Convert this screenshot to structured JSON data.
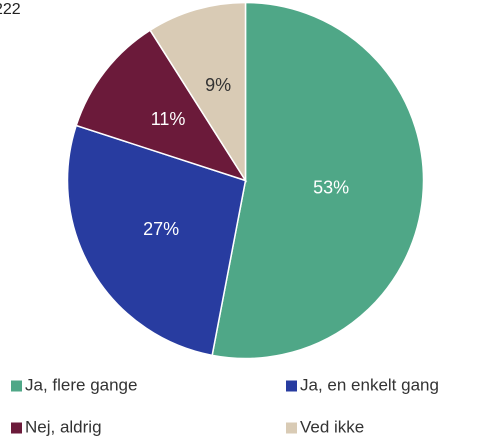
{
  "chart_data": {
    "type": "pie",
    "title": "222",
    "categories": [
      "Ja, flere gange",
      "Ja, en enkelt gang",
      "Nej, aldrig",
      "Ved ikke"
    ],
    "values": [
      53,
      27,
      11,
      9
    ],
    "value_labels": [
      "53%",
      "27%",
      "11%",
      "9%"
    ],
    "colors": [
      "#4fa787",
      "#283ca0",
      "#6b1a3a",
      "#d9cbb5"
    ]
  }
}
